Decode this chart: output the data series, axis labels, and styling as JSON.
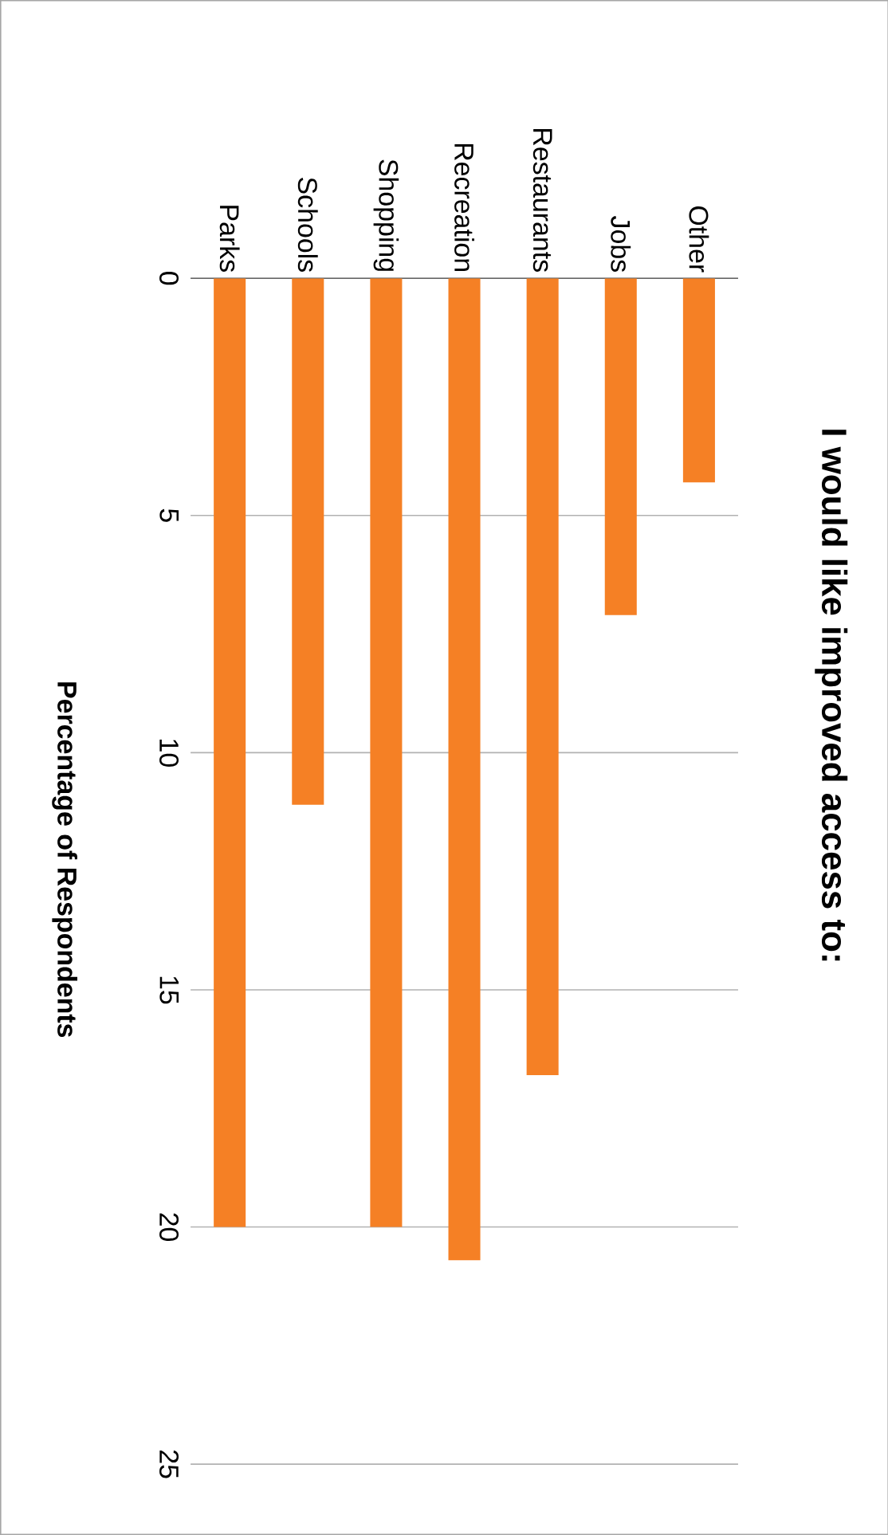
{
  "chart_data": {
    "type": "bar",
    "title": "I would like improved access to:",
    "ylabel": "Percentage of Respondents",
    "categories": [
      "Parks",
      "Schools",
      "Shopping",
      "Recreation",
      "Restaurants",
      "Jobs",
      "Other"
    ],
    "values": [
      20,
      11.1,
      20,
      20.7,
      16.8,
      7.1,
      4.3
    ],
    "color": "#f58025",
    "ylim": [
      25,
      0
    ],
    "yticks": [
      0,
      5,
      10,
      15,
      20,
      25
    ],
    "grid": "y"
  }
}
